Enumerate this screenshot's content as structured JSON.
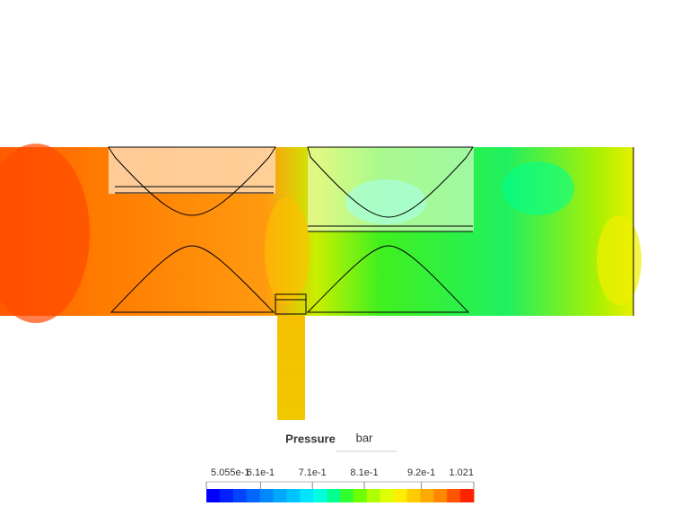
{
  "legend": {
    "title": "Pressure",
    "unit": "bar",
    "range": [
      0.5055,
      1.021
    ],
    "ticks": [
      {
        "value": 0.5055,
        "label": "5.055e-1"
      },
      {
        "value": 0.61,
        "label": "6.1e-1"
      },
      {
        "value": 0.71,
        "label": "7.1e-1"
      },
      {
        "value": 0.81,
        "label": "8.1e-1"
      },
      {
        "value": 0.92,
        "label": "9.2e-1"
      },
      1.021
    ],
    "colors": [
      "#0000ff",
      "#0020ff",
      "#0044ff",
      "#0066ff",
      "#0088ff",
      "#00a8ff",
      "#00c4ff",
      "#00e4ff",
      "#00ffe0",
      "#00ff90",
      "#30ff30",
      "#70ff00",
      "#b0ff00",
      "#e0ff00",
      "#ffee00",
      "#ffcc00",
      "#ffaa00",
      "#ff8800",
      "#ff5500",
      "#ff2200"
    ]
  }
}
